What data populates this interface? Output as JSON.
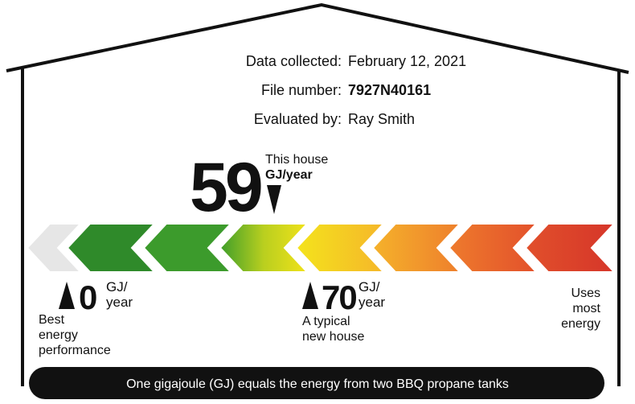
{
  "details": [
    {
      "label": "Data collected:",
      "value": "February 12, 2021"
    },
    {
      "label": "File number:",
      "value": "7927N40161"
    },
    {
      "label": "Evaluated by:",
      "value": "Ray Smith"
    }
  ],
  "rating": {
    "value": "59",
    "caption": "This house",
    "unit": "GJ/year"
  },
  "scale": {
    "best": {
      "value": "0",
      "unit_line1": "GJ/",
      "unit_line2": "year",
      "caption": [
        "Best",
        "energy",
        "performance"
      ]
    },
    "typical": {
      "value": "70",
      "unit_line1": "GJ/",
      "unit_line2": "year",
      "caption": [
        "A typical",
        "new house"
      ]
    },
    "worst": {
      "caption": [
        "Uses",
        "most",
        "energy"
      ]
    }
  },
  "footer": "One gigajoule (GJ) equals the energy from two BBQ propane tanks"
}
